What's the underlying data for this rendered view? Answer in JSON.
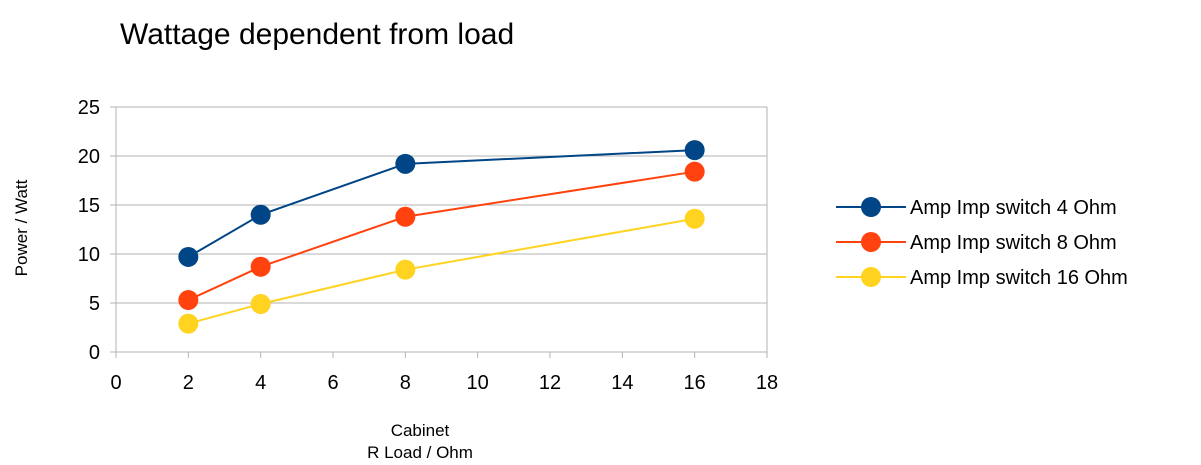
{
  "chart_data": {
    "type": "scatter",
    "title": "Wattage dependent from load",
    "xlabel": [
      "Cabinet",
      "R Load / Ohm"
    ],
    "ylabel": "Power / Watt",
    "xlim": [
      0,
      18
    ],
    "ylim": [
      0,
      25
    ],
    "xticks": [
      0,
      2,
      4,
      6,
      8,
      10,
      12,
      14,
      16,
      18
    ],
    "yticks": [
      0,
      5,
      10,
      15,
      20,
      25
    ],
    "grid": "horizontal",
    "legend_position": "right",
    "x": [
      2,
      4,
      8,
      16
    ],
    "series": [
      {
        "name": "Amp Imp switch 4 Ohm",
        "values": [
          9.7,
          14.0,
          19.2,
          20.6
        ],
        "color": "#004586"
      },
      {
        "name": "Amp Imp switch 8 Ohm",
        "values": [
          5.3,
          8.7,
          13.8,
          18.4
        ],
        "color": "#ff420e"
      },
      {
        "name": "Amp Imp switch 16 Ohm",
        "values": [
          2.9,
          4.9,
          8.4,
          13.6
        ],
        "color": "#ffd320"
      }
    ]
  }
}
